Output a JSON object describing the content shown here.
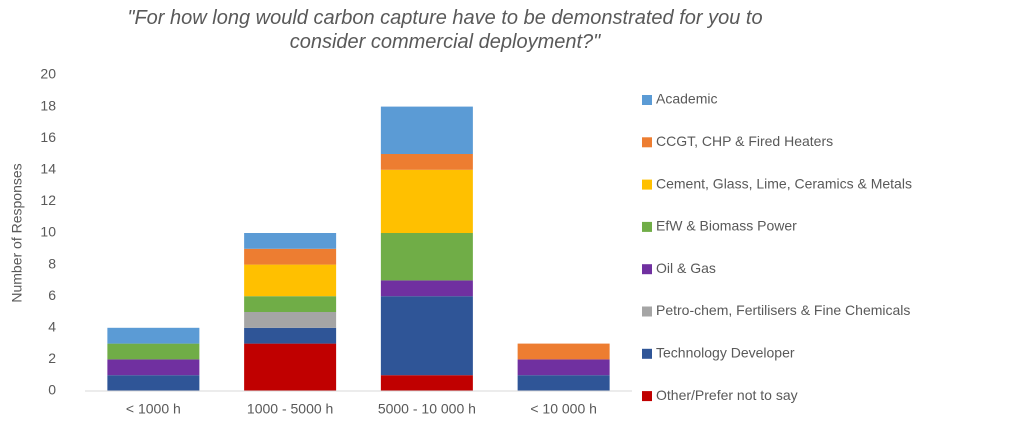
{
  "chart_data": {
    "type": "stacked_bar",
    "title": "\"For how long would carbon capture have to be demonstrated for you to consider commercial deployment?\"",
    "y_label": "Number of Responses",
    "categories": [
      "< 1000 h",
      "1000  - 5000 h",
      "5000  - 10 000 h",
      "< 10 000 h"
    ],
    "series": [
      {
        "name": "Academic",
        "color": "#5b9bd5",
        "values": [
          1,
          1,
          3,
          0
        ]
      },
      {
        "name": "CCGT, CHP & Fired Heaters",
        "color": "#ed7d31",
        "values": [
          0,
          1,
          1,
          1
        ]
      },
      {
        "name": "Cement, Glass, Lime, Ceramics & Metals",
        "color": "#ffc000",
        "values": [
          0,
          2,
          4,
          0
        ]
      },
      {
        "name": "EfW & Biomass Power",
        "color": "#70ad47",
        "values": [
          1,
          1,
          3,
          0
        ]
      },
      {
        "name": "Oil & Gas",
        "color": "#7030a0",
        "values": [
          1,
          0,
          1,
          1
        ]
      },
      {
        "name": "Petro-chem, Fertilisers & Fine Chemicals",
        "color": "#a5a5a5",
        "values": [
          0,
          1,
          0,
          0
        ]
      },
      {
        "name": "Technology  Developer",
        "color": "#2f5597",
        "values": [
          1,
          1,
          5,
          1
        ]
      },
      {
        "name": "Other/Prefer not to say",
        "color": "#c00000",
        "values": [
          0,
          3,
          1,
          0
        ]
      }
    ],
    "ylim": [
      0,
      20
    ],
    "yticks": [
      0,
      2,
      4,
      6,
      8,
      10,
      12,
      14,
      16,
      18,
      20
    ],
    "grid": false,
    "legend": "right"
  }
}
